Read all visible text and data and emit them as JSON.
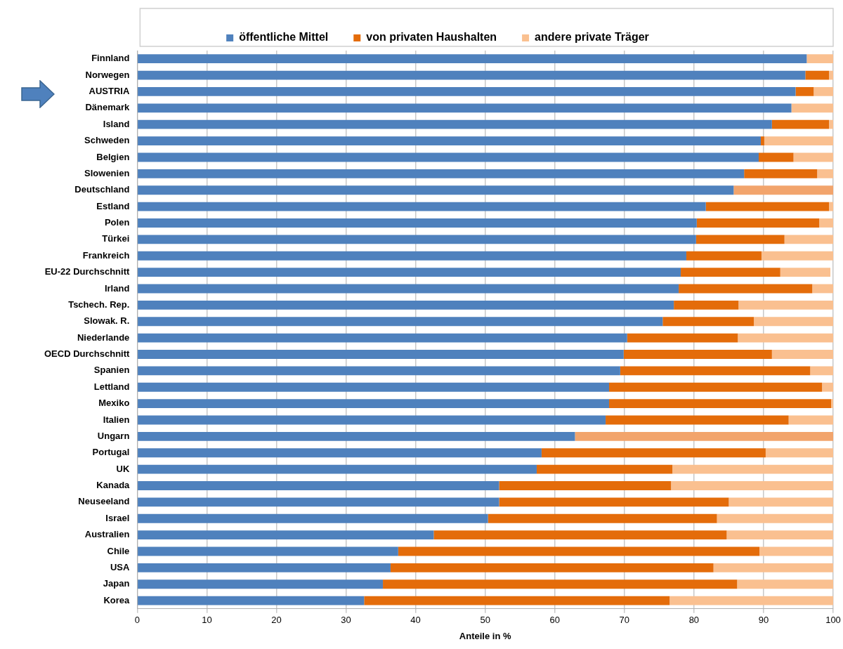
{
  "chart_data": {
    "type": "bar",
    "orientation": "horizontal",
    "stacked": true,
    "xlabel": "Anteile in %",
    "categories": [
      "Finnland",
      "Norwegen",
      "AUSTRIA",
      "Dänemark",
      "Island",
      "Schweden",
      "Belgien",
      "Slowenien",
      "Deutschland",
      "Estland",
      "Polen",
      "Türkei",
      "Frankreich",
      "EU-22 Durchschnitt",
      "Irland",
      "Tschech. Rep.",
      "Slowak. R.",
      "Niederlande",
      "OECD Durchschnitt",
      "Spanien",
      "Lettland",
      "Mexiko",
      "Italien",
      "Ungarn",
      "Portugal",
      "UK",
      "Kanada",
      "Neuseeland",
      "Israel",
      "Australien",
      "Chile",
      "USA",
      "Japan",
      "Korea"
    ],
    "series": [
      {
        "name": "öffentliche Mittel",
        "color": "#4f81bd",
        "values": [
          96.2,
          96.0,
          94.6,
          94.0,
          91.2,
          89.6,
          89.3,
          87.2,
          85.7,
          81.7,
          80.4,
          80.3,
          78.9,
          78.1,
          77.8,
          77.1,
          75.5,
          70.4,
          69.9,
          69.4,
          67.8,
          67.8,
          67.3,
          62.9,
          58.1,
          57.4,
          52.0,
          52.0,
          50.4,
          42.6,
          37.5,
          36.4,
          35.3,
          32.6
        ]
      },
      {
        "name": "von privaten Haushalten",
        "color": "#e46c0a",
        "values": [
          null,
          3.4,
          2.6,
          null,
          8.2,
          0.5,
          5.0,
          10.5,
          null,
          17.7,
          17.6,
          12.7,
          10.8,
          14.3,
          19.2,
          9.3,
          13.1,
          15.9,
          21.3,
          27.3,
          30.6,
          31.9,
          26.3,
          null,
          32.2,
          19.5,
          24.7,
          33.0,
          32.9,
          42.1,
          51.9,
          46.4,
          50.9,
          43.9
        ]
      },
      {
        "name": "andere private Träger",
        "color": "#fac090",
        "values": [
          3.8,
          0.6,
          2.8,
          6.0,
          0.6,
          9.9,
          5.7,
          2.3,
          null,
          0.6,
          2.0,
          7.0,
          10.3,
          7.2,
          3.0,
          13.6,
          11.4,
          13.7,
          8.8,
          3.3,
          1.6,
          0.3,
          6.4,
          null,
          9.7,
          23.1,
          23.3,
          15.0,
          16.7,
          15.3,
          10.6,
          17.2,
          13.8,
          23.5
        ]
      },
      {
        "color": "#f2a46c",
        "values": [
          null,
          null,
          null,
          null,
          null,
          null,
          null,
          null,
          14.3,
          null,
          null,
          null,
          null,
          null,
          null,
          null,
          null,
          null,
          null,
          null,
          null,
          null,
          null,
          37.1,
          null,
          null,
          null,
          null,
          null,
          null,
          null,
          null,
          null,
          null
        ]
      }
    ],
    "xlim": [
      0,
      100
    ],
    "xticks": [
      0,
      10,
      20,
      30,
      40,
      50,
      60,
      70,
      80,
      90,
      100
    ],
    "grid": "x",
    "legend": "top"
  }
}
